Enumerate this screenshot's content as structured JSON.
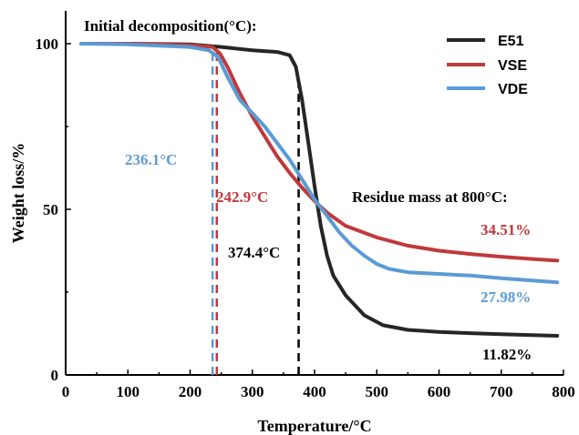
{
  "chart_data": {
    "type": "line",
    "xlabel": "Temperature/°C",
    "ylabel": "Weight loss/%",
    "xlim": [
      0,
      800
    ],
    "ylim": [
      0,
      100
    ],
    "x_ticks": [
      "0",
      "100",
      "200",
      "300",
      "400",
      "500",
      "600",
      "700",
      "800"
    ],
    "y_ticks": [
      "0",
      "50",
      "100"
    ],
    "grid": false,
    "legend_position": "top-right",
    "series": [
      {
        "name": "E51",
        "color": "#262626",
        "points": [
          [
            25,
            100
          ],
          [
            100,
            100
          ],
          [
            200,
            99.8
          ],
          [
            250,
            99
          ],
          [
            300,
            98
          ],
          [
            340,
            97.5
          ],
          [
            360,
            96.5
          ],
          [
            370,
            93
          ],
          [
            380,
            83
          ],
          [
            390,
            70
          ],
          [
            400,
            57
          ],
          [
            410,
            45
          ],
          [
            420,
            36
          ],
          [
            430,
            30
          ],
          [
            450,
            24
          ],
          [
            480,
            18
          ],
          [
            510,
            15
          ],
          [
            550,
            13.6
          ],
          [
            600,
            13
          ],
          [
            650,
            12.6
          ],
          [
            700,
            12.3
          ],
          [
            750,
            12
          ],
          [
            790,
            11.82
          ]
        ]
      },
      {
        "name": "VSE",
        "color": "#c0393b",
        "points": [
          [
            25,
            100
          ],
          [
            100,
            100
          ],
          [
            200,
            99.6
          ],
          [
            236,
            99
          ],
          [
            248,
            97
          ],
          [
            260,
            93
          ],
          [
            280,
            85
          ],
          [
            300,
            78
          ],
          [
            320,
            72
          ],
          [
            340,
            66
          ],
          [
            360,
            61
          ],
          [
            380,
            56.5
          ],
          [
            400,
            52.5
          ],
          [
            420,
            49
          ],
          [
            450,
            45
          ],
          [
            500,
            41.5
          ],
          [
            550,
            39
          ],
          [
            600,
            37.5
          ],
          [
            650,
            36.5
          ],
          [
            700,
            35.7
          ],
          [
            750,
            35
          ],
          [
            790,
            34.51
          ]
        ]
      },
      {
        "name": "VDE",
        "color": "#5b9bd5",
        "points": [
          [
            25,
            100
          ],
          [
            100,
            99.8
          ],
          [
            200,
            99
          ],
          [
            230,
            98
          ],
          [
            245,
            96
          ],
          [
            260,
            90
          ],
          [
            280,
            83
          ],
          [
            300,
            79
          ],
          [
            320,
            75
          ],
          [
            340,
            70
          ],
          [
            360,
            65
          ],
          [
            380,
            59
          ],
          [
            400,
            53
          ],
          [
            420,
            48
          ],
          [
            440,
            43
          ],
          [
            460,
            39
          ],
          [
            480,
            36
          ],
          [
            500,
            33.5
          ],
          [
            520,
            32
          ],
          [
            550,
            31
          ],
          [
            600,
            30.5
          ],
          [
            650,
            30
          ],
          [
            700,
            29.2
          ],
          [
            750,
            28.5
          ],
          [
            790,
            27.98
          ]
        ]
      }
    ],
    "markers": [
      {
        "name": "VDE",
        "x": 236.1,
        "color": "#5b9bd5"
      },
      {
        "name": "VSE",
        "x": 242.9,
        "color": "#c0393b"
      },
      {
        "name": "E51",
        "x": 374.4,
        "color": "#000000"
      }
    ],
    "annotations": {
      "initial_title": "Initial decomposition(°C):",
      "vde_temp": "236.1°C",
      "vse_temp": "242.9°C",
      "e51_temp": "374.4°C",
      "residue_title": "Residue mass at 800°C:",
      "vse_residue": "34.51%",
      "vde_residue": "27.98%",
      "e51_residue": "11.82%"
    }
  }
}
